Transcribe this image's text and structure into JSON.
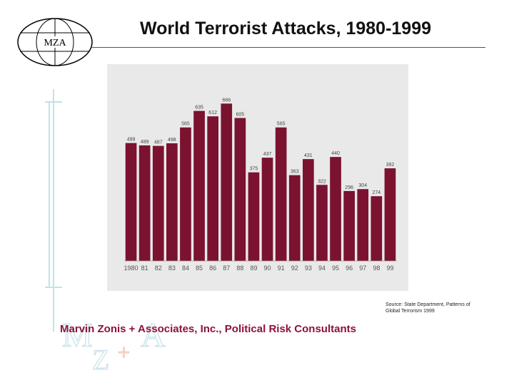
{
  "logo": {
    "text": "MZA"
  },
  "header": {
    "title": "World Terrorist Attacks, 1980-1999"
  },
  "source": {
    "line1": "Source: State Department, Patterns of",
    "line2": "Global Terrorism 1999"
  },
  "footer": {
    "company": "Marvin Zonis + Associates, Inc., Political Risk Consultants"
  },
  "watermark": {
    "letters": [
      "M",
      "Z",
      "+",
      "A"
    ]
  },
  "colors": {
    "bar": "#7a1230",
    "footer": "#8e1238",
    "rule": "#2f6e2f",
    "panel": "#e9e9e9"
  },
  "chart_data": {
    "type": "bar",
    "title": "World Terrorist Attacks, 1980-1999",
    "xlabel": "",
    "ylabel": "",
    "categories": [
      "1980",
      "81",
      "82",
      "83",
      "84",
      "85",
      "86",
      "87",
      "88",
      "89",
      "90",
      "91",
      "92",
      "93",
      "94",
      "95",
      "96",
      "97",
      "98",
      "99"
    ],
    "values": [
      499,
      489,
      487,
      498,
      565,
      635,
      612,
      666,
      605,
      375,
      437,
      565,
      363,
      431,
      322,
      440,
      296,
      304,
      274,
      392
    ],
    "ylim": [
      0,
      700
    ],
    "grid": false,
    "legend": "none"
  }
}
